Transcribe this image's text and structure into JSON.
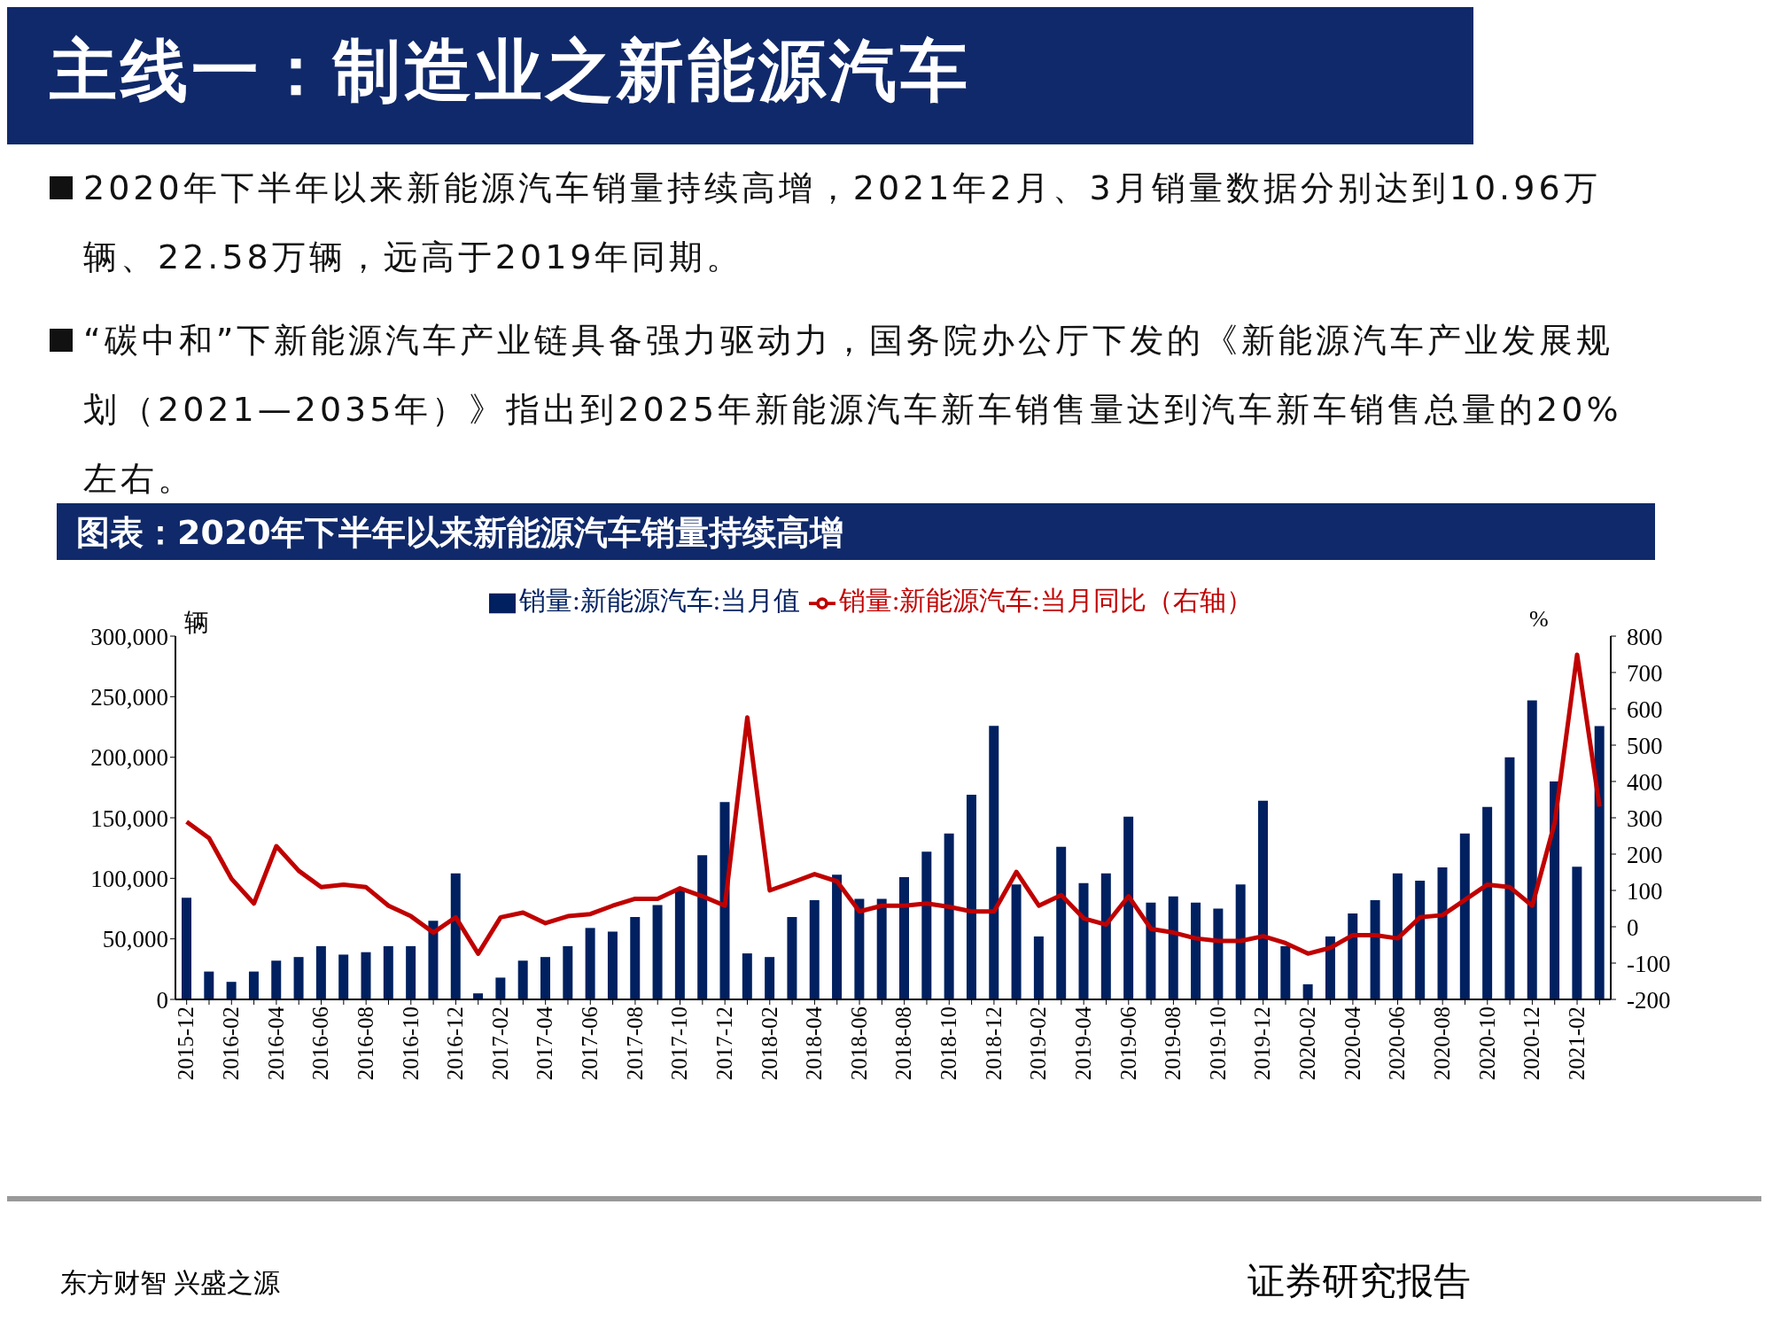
{
  "chart_data": {
    "type": "bar",
    "title": "主线一：制造业之新能源汽车",
    "subtitle": "图表：2020年下半年以来新能源汽车销量持续高增",
    "ylabel": "辆",
    "y2label": "%",
    "annotations": [
      "2020年下半年以来新能源汽车销量持续高增，2021年2月、3月销量数据分别达到10.96万辆、22.58万辆，远高于2019年同期。",
      "“碳中和”下新能源汽车产业链具备强力驱动力，国务院办公厅下发的《新能源汽车产业发展规划（2021—2035年）》指出到2025年新能源汽车新车销售量达到汽车新车销售总量的20%左右。",
      "东方财智 兴盛之源",
      "证券研究报告"
    ],
    "categories": [
      "2015-12",
      null,
      "2016-02",
      null,
      "2016-04",
      null,
      "2016-06",
      null,
      "2016-08",
      null,
      "2016-10",
      null,
      "2016-12",
      null,
      "2017-02",
      null,
      "2017-04",
      null,
      "2017-06",
      null,
      "2017-08",
      null,
      "2017-10",
      null,
      "2017-12",
      null,
      "2018-02",
      null,
      "2018-04",
      null,
      "2018-06",
      null,
      "2018-08",
      null,
      "2018-10",
      null,
      "2018-12",
      null,
      "2019-02",
      null,
      "2019-04",
      null,
      "2019-06",
      null,
      "2019-08",
      null,
      "2019-10",
      null,
      "2019-12",
      null,
      "2020-02",
      null,
      "2020-04",
      null,
      "2020-06",
      null,
      "2020-08",
      null,
      "2020-10",
      null,
      "2020-12",
      null,
      "2021-02",
      null
    ],
    "series": [
      {
        "name": "销量:新能源汽车:当月值",
        "color": "#002060",
        "values": [
          84000,
          23000,
          14500,
          23000,
          32000,
          35000,
          44000,
          37000,
          39000,
          44000,
          44000,
          65000,
          104000,
          5000,
          18000,
          32000,
          35000,
          44000,
          59000,
          56000,
          68000,
          78000,
          91000,
          119000,
          163000,
          38000,
          35000,
          68000,
          82000,
          103000,
          83000,
          83000,
          101000,
          122000,
          137000,
          169000,
          226000,
          95000,
          52000,
          126000,
          96000,
          104000,
          151000,
          80000,
          85000,
          80000,
          75000,
          95000,
          164000,
          44000,
          12500,
          52000,
          71000,
          82000,
          104000,
          98000,
          109000,
          137000,
          159000,
          200000,
          247000,
          180000,
          109600,
          225800
        ]
      },
      {
        "name": "销量:新能源汽车:当月同比（右轴）",
        "type": "line",
        "axis": "y2",
        "color": "#c00000",
        "values": [
          289,
          244,
          132,
          64,
          222,
          154,
          109,
          116,
          109,
          58,
          29,
          -16,
          26,
          -74,
          26,
          39,
          10,
          29,
          35,
          58,
          77,
          77,
          106,
          84,
          58,
          576,
          100,
          122,
          145,
          125,
          42,
          58,
          58,
          64,
          55,
          42,
          42,
          151,
          58,
          87,
          23,
          6,
          84,
          -6,
          -16,
          -32,
          -39,
          -39,
          -26,
          -45,
          -74,
          -58,
          -23,
          -23,
          -32,
          26,
          32,
          74,
          116,
          109,
          58,
          286,
          749,
          331
        ]
      }
    ],
    "ylim": [
      0,
      300000
    ],
    "yticks": [
      0,
      {
        "value": 50000,
        "label": "50,000"
      },
      {
        "value": 100000,
        "label": "100,000"
      },
      {
        "value": 150000,
        "label": "150,000"
      },
      {
        "value": 200000,
        "label": "200,000"
      },
      {
        "value": 250000,
        "label": "250,000"
      },
      {
        "value": 300000,
        "label": "300,000"
      }
    ],
    "y2lim": [
      -200,
      800
    ],
    "y2ticks": [
      -200,
      -100,
      0,
      100,
      200,
      300,
      400,
      500,
      600,
      700,
      800
    ],
    "legend": "top",
    "marker": "none",
    "line_style": "solid"
  }
}
